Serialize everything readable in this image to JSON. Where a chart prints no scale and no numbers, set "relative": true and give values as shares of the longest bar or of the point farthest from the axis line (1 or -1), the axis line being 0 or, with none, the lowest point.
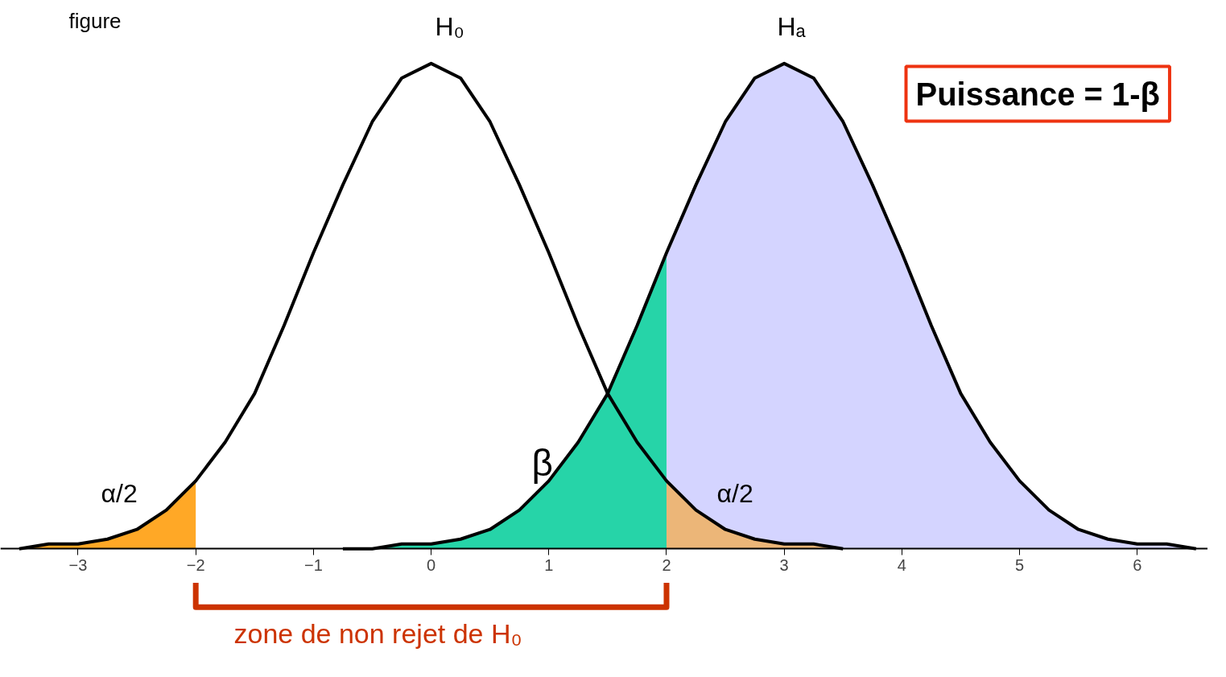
{
  "chart_data": {
    "type": "line",
    "title": "figure",
    "relative": true,
    "tick_labels": "x",
    "xlim": [
      -3.66,
      6.6
    ],
    "xticks": [
      -3,
      -2,
      -1,
      0,
      1,
      2,
      3,
      4,
      5,
      6
    ],
    "series": [
      {
        "type": "area",
        "color": "#ccccff",
        "x": [
          2,
          2.25,
          2.5,
          2.75,
          3,
          3.25,
          3.5,
          3.75,
          4,
          4.25,
          4.5,
          4.75,
          5,
          5.25,
          5.5,
          5.75,
          6,
          6.25,
          6.5
        ],
        "values": [
          0.61,
          0.75,
          0.88,
          0.97,
          1,
          0.97,
          0.88,
          0.75,
          0.61,
          0.46,
          0.32,
          0.22,
          0.14,
          0.08,
          0.04,
          0.02,
          0.01,
          0.01,
          0
        ]
      },
      {
        "type": "area",
        "color": "#ff9900",
        "x": [
          -3.5,
          -3.25,
          -3,
          -2.75,
          -2.5,
          -2.25,
          -2
        ],
        "values": [
          0,
          0.01,
          0.01,
          0.02,
          0.04,
          0.08,
          0.14
        ]
      },
      {
        "type": "area",
        "color": "#00cc99",
        "x": [
          -0.75,
          -0.5,
          -0.25,
          0,
          0.25,
          0.5,
          0.75,
          1,
          1.25,
          1.5,
          1.75,
          2
        ],
        "values": [
          0,
          0,
          0.01,
          0.01,
          0.02,
          0.04,
          0.08,
          0.14,
          0.22,
          0.32,
          0.46,
          0.61
        ]
      },
      {
        "type": "area",
        "color": "#f0b060",
        "x": [
          2,
          2.25,
          2.5,
          2.75,
          3,
          3.25,
          3.5
        ],
        "values": [
          0.14,
          0.08,
          0.04,
          0.02,
          0.01,
          0.01,
          0
        ]
      },
      {
        "color": "#000000",
        "x": [
          -3.5,
          -3.25,
          -3,
          -2.75,
          -2.5,
          -2.25,
          -2,
          -1.75,
          -1.5,
          -1.25,
          -1,
          -0.75,
          -0.5,
          -0.25,
          0,
          0.25,
          0.5,
          0.75,
          1,
          1.25,
          1.5,
          1.75,
          2,
          2.25,
          2.5,
          2.75,
          3,
          3.25,
          3.5
        ],
        "values": [
          0,
          0.01,
          0.01,
          0.02,
          0.04,
          0.08,
          0.14,
          0.22,
          0.32,
          0.46,
          0.61,
          0.75,
          0.88,
          0.97,
          1,
          0.97,
          0.88,
          0.75,
          0.61,
          0.46,
          0.32,
          0.22,
          0.14,
          0.08,
          0.04,
          0.02,
          0.01,
          0.01,
          0
        ]
      },
      {
        "color": "#000000",
        "x": [
          -0.75,
          -0.5,
          -0.25,
          0,
          0.25,
          0.5,
          0.75,
          1,
          1.25,
          1.5,
          1.75,
          2,
          2.25,
          2.5,
          2.75,
          3,
          3.25,
          3.5,
          3.75,
          4,
          4.25,
          4.5,
          4.75,
          5,
          5.25,
          5.5,
          5.75,
          6,
          6.25,
          6.5
        ],
        "values": [
          0,
          0,
          0.01,
          0.01,
          0.02,
          0.04,
          0.08,
          0.14,
          0.22,
          0.32,
          0.46,
          0.61,
          0.75,
          0.88,
          0.97,
          1,
          0.97,
          0.88,
          0.75,
          0.61,
          0.46,
          0.32,
          0.22,
          0.14,
          0.08,
          0.04,
          0.02,
          0.01,
          0.01,
          0
        ]
      }
    ],
    "annotations": [
      "H₀",
      "Hₐ",
      "α/2",
      "α/2",
      "β",
      "Puissance = 1-β",
      "zone de non rejet de H₀"
    ]
  }
}
